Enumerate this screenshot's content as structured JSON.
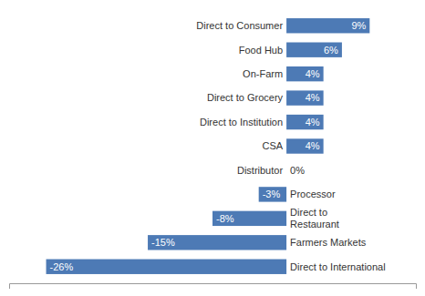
{
  "chart_data": {
    "type": "bar",
    "orientation": "horizontal",
    "categories": [
      "Direct to Consumer",
      "Food Hub",
      "On-Farm",
      "Direct to Grocery",
      "Direct to Institution",
      "CSA",
      "Distributor",
      "Processor",
      "Direct to\nRestaurant",
      "Farmers Markets",
      "Direct to International"
    ],
    "values": [
      9,
      6,
      4,
      4,
      4,
      4,
      0,
      -3,
      -8,
      -15,
      -26
    ],
    "value_labels": [
      "9%",
      "6%",
      "4%",
      "4%",
      "4%",
      "4%",
      "0%",
      "-3%",
      "-8%",
      "-15%",
      "-26%"
    ],
    "data_labels": true,
    "color": "#4d7ab5",
    "xlim": [
      -30,
      14
    ],
    "tick_labels": false
  }
}
